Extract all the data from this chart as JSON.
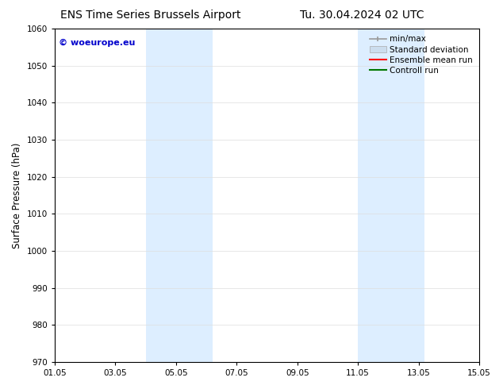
{
  "title_left": "ENS Time Series Brussels Airport",
  "title_right": "Tu. 30.04.2024 02 UTC",
  "ylabel": "Surface Pressure (hPa)",
  "ylim": [
    970,
    1060
  ],
  "yticks": [
    970,
    980,
    990,
    1000,
    1010,
    1020,
    1030,
    1040,
    1050,
    1060
  ],
  "xlim": [
    0,
    14
  ],
  "xtick_labels": [
    "01.05",
    "03.05",
    "05.05",
    "07.05",
    "09.05",
    "11.05",
    "13.05",
    "15.05"
  ],
  "xtick_positions": [
    0,
    2,
    4,
    6,
    8,
    10,
    12,
    14
  ],
  "shaded_regions": [
    {
      "start": 3,
      "end": 5.2,
      "color": "#ddeeff"
    },
    {
      "start": 10,
      "end": 12.2,
      "color": "#ddeeff"
    }
  ],
  "watermark_text": "© woeurope.eu",
  "watermark_color": "#0000cc",
  "background_color": "#ffffff",
  "legend_entries": [
    {
      "label": "min/max",
      "color": "#999999",
      "lw": 1.2
    },
    {
      "label": "Standard deviation",
      "color": "#ccddee",
      "lw": 6
    },
    {
      "label": "Ensemble mean run",
      "color": "#ff0000",
      "lw": 1.5
    },
    {
      "label": "Controll run",
      "color": "#007700",
      "lw": 1.5
    }
  ],
  "title_fontsize": 10,
  "tick_fontsize": 7.5,
  "legend_fontsize": 7.5,
  "ylabel_fontsize": 8.5,
  "watermark_fontsize": 8
}
